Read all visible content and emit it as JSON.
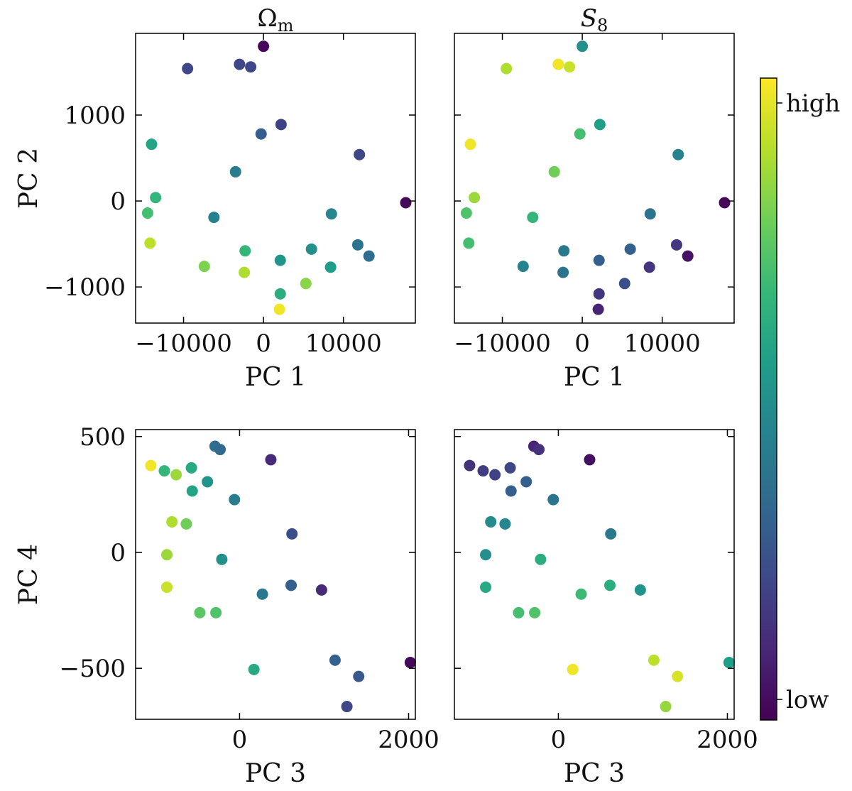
{
  "chart_data": [
    {
      "type": "scatter",
      "title": "Ω_m",
      "title_main": "Ω",
      "title_sub": "m",
      "xlabel": "PC 1",
      "ylabel": "PC 2",
      "xlim": [
        -16000,
        19000
      ],
      "ylim": [
        -1420,
        1950
      ],
      "xticks": [
        -10000,
        0,
        10000
      ],
      "xtick_labels": [
        "−10000",
        "0",
        "10000"
      ],
      "yticks": [
        -1000,
        0,
        1000
      ],
      "ytick_labels": [
        "−1000",
        "0",
        "1000"
      ],
      "x": [
        0,
        -9500,
        -3000,
        -1600,
        2200,
        -300,
        12000,
        -14000,
        -3500,
        -13500,
        -14500,
        -6200,
        8500,
        -14200,
        -2300,
        2100,
        6000,
        11800,
        13200,
        -7400,
        -2400,
        8400,
        5300,
        2100,
        2000,
        17800
      ],
      "y": [
        1800,
        1540,
        1590,
        1560,
        890,
        780,
        540,
        660,
        340,
        40,
        -140,
        -190,
        -150,
        -490,
        -580,
        -690,
        -560,
        -510,
        -640,
        -760,
        -830,
        -770,
        -960,
        -1080,
        -1260,
        -20
      ],
      "color_value": [
        0.02,
        0.22,
        0.22,
        0.22,
        0.2,
        0.3,
        0.22,
        0.58,
        0.42,
        0.66,
        0.7,
        0.44,
        0.46,
        0.9,
        0.66,
        0.52,
        0.5,
        0.38,
        0.36,
        0.8,
        0.88,
        0.55,
        0.82,
        0.62,
        0.98,
        0.02
      ]
    },
    {
      "type": "scatter",
      "title": "S_8",
      "title_main": "S",
      "title_sub": "8",
      "xlabel": "PC 1",
      "ylabel": "",
      "xlim": [
        -16000,
        19000
      ],
      "ylim": [
        -1420,
        1950
      ],
      "xticks": [
        -10000,
        0,
        10000
      ],
      "xtick_labels": [
        "−10000",
        "0",
        "10000"
      ],
      "yticks": [
        -1000,
        0,
        1000
      ],
      "ytick_labels": [
        "",
        "",
        ""
      ],
      "x": [
        0,
        -9500,
        -3000,
        -1600,
        2200,
        -300,
        12000,
        -14000,
        -3500,
        -13500,
        -14500,
        -6200,
        8500,
        -14200,
        -2300,
        2100,
        6000,
        11800,
        13200,
        -7400,
        -2400,
        8400,
        5300,
        2100,
        2000,
        17800
      ],
      "y": [
        1800,
        1540,
        1590,
        1560,
        890,
        780,
        540,
        660,
        340,
        40,
        -140,
        -190,
        -150,
        -490,
        -580,
        -690,
        -560,
        -510,
        -640,
        -760,
        -830,
        -770,
        -960,
        -1080,
        -1260,
        -20
      ],
      "color_value": [
        0.5,
        0.88,
        0.98,
        0.92,
        0.56,
        0.7,
        0.45,
        0.98,
        0.78,
        0.85,
        0.72,
        0.66,
        0.38,
        0.7,
        0.4,
        0.3,
        0.3,
        0.16,
        0.05,
        0.45,
        0.38,
        0.15,
        0.24,
        0.15,
        0.1,
        0.02
      ]
    },
    {
      "type": "scatter",
      "title": "",
      "xlabel": "PC 3",
      "ylabel": "PC 4",
      "xlim": [
        -1230,
        2080
      ],
      "ylim": [
        -720,
        530
      ],
      "xticks": [
        0,
        2000
      ],
      "xtick_labels": [
        "0",
        "2000"
      ],
      "yticks": [
        -500,
        0,
        500
      ],
      "ytick_labels": [
        "−500",
        "0",
        "500"
      ],
      "x": [
        -1050,
        -890,
        -750,
        -570,
        -380,
        -290,
        -230,
        370,
        -560,
        -60,
        -800,
        -630,
        620,
        -860,
        -210,
        -860,
        -470,
        -280,
        270,
        610,
        970,
        170,
        1130,
        1410,
        1270,
        2020
      ],
      "y": [
        375,
        352,
        335,
        365,
        305,
        458,
        444,
        400,
        265,
        228,
        132,
        123,
        80,
        -10,
        -30,
        -150,
        -260,
        -260,
        -180,
        -142,
        -162,
        -505,
        -465,
        -535,
        -665,
        -475
      ],
      "color_value": [
        0.98,
        0.66,
        0.85,
        0.6,
        0.52,
        0.36,
        0.34,
        0.12,
        0.58,
        0.42,
        0.88,
        0.78,
        0.24,
        0.85,
        0.5,
        0.92,
        0.74,
        0.72,
        0.4,
        0.3,
        0.12,
        0.6,
        0.3,
        0.28,
        0.22,
        0.02
      ]
    },
    {
      "type": "scatter",
      "title": "",
      "xlabel": "PC 3",
      "ylabel": "",
      "xlim": [
        -1230,
        2080
      ],
      "ylim": [
        -720,
        530
      ],
      "xticks": [
        0,
        2000
      ],
      "xtick_labels": [
        "0",
        "2000"
      ],
      "yticks": [
        -500,
        0,
        500
      ],
      "ytick_labels": [
        "",
        "",
        ""
      ],
      "x": [
        -1050,
        -890,
        -750,
        -570,
        -380,
        -290,
        -230,
        370,
        -560,
        -60,
        -800,
        -630,
        620,
        -860,
        -210,
        -860,
        -470,
        -280,
        270,
        610,
        970,
        170,
        1130,
        1410,
        1270,
        2020
      ],
      "y": [
        375,
        352,
        335,
        365,
        305,
        458,
        444,
        400,
        265,
        228,
        132,
        123,
        80,
        -10,
        -30,
        -150,
        -260,
        -260,
        -180,
        -142,
        -162,
        -505,
        -465,
        -535,
        -665,
        -475
      ],
      "color_value": [
        0.14,
        0.18,
        0.2,
        0.22,
        0.3,
        0.1,
        0.14,
        0.04,
        0.3,
        0.38,
        0.48,
        0.46,
        0.4,
        0.5,
        0.62,
        0.6,
        0.7,
        0.72,
        0.68,
        0.62,
        0.52,
        0.98,
        0.9,
        0.94,
        0.84,
        0.56
      ]
    }
  ],
  "colorbar": {
    "colormap": "viridis",
    "high_label": "high",
    "low_label": "low",
    "colors": [
      "#440154",
      "#482878",
      "#3e4989",
      "#31688e",
      "#26828e",
      "#1f9e89",
      "#35b779",
      "#6ece58",
      "#b5de2b",
      "#fde725"
    ]
  }
}
